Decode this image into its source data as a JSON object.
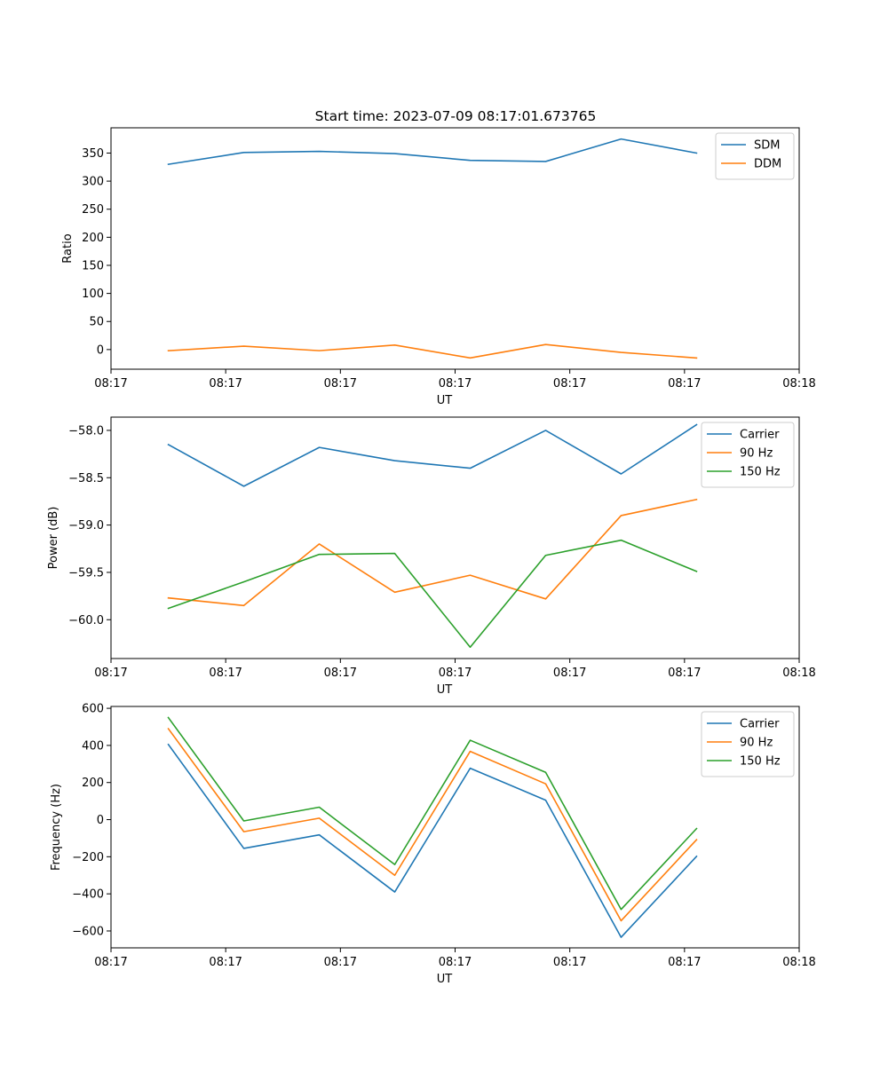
{
  "title": "Start time: 2023-07-09 08:17:01.673765",
  "chart_data": [
    {
      "type": "line",
      "title": "Start time: 2023-07-09 08:17:01.673765",
      "xlabel": "UT",
      "ylabel": "Ratio",
      "x": [
        0,
        1,
        2,
        3,
        4,
        5,
        6,
        7
      ],
      "xlim": [
        -0.76,
        8.36
      ],
      "x_ticks": [
        -0.76,
        0.76,
        2.28,
        3.8,
        5.32,
        6.84,
        8.36
      ],
      "x_tick_labels": [
        "08:17",
        "08:17",
        "08:17",
        "08:17",
        "08:17",
        "08:17",
        "08:18"
      ],
      "ylim": [
        -35,
        395
      ],
      "y_ticks": [
        0,
        50,
        100,
        150,
        200,
        250,
        300,
        350
      ],
      "y_tick_labels": [
        "0",
        "50",
        "100",
        "150",
        "200",
        "250",
        "300",
        "350"
      ],
      "legend_position": "top-right",
      "series": [
        {
          "name": "SDM",
          "color": "#1f77b4",
          "values": [
            330,
            351,
            353,
            349,
            337,
            335,
            375,
            350
          ]
        },
        {
          "name": "DDM",
          "color": "#ff7f0e",
          "values": [
            -2,
            6,
            -2,
            8,
            -15,
            9,
            -5,
            -15
          ]
        }
      ]
    },
    {
      "type": "line",
      "xlabel": "UT",
      "ylabel": "Power (dB)",
      "x": [
        0,
        1,
        2,
        3,
        4,
        5,
        6,
        7
      ],
      "xlim": [
        -0.76,
        8.36
      ],
      "x_ticks": [
        -0.76,
        0.76,
        2.28,
        3.8,
        5.32,
        6.84,
        8.36
      ],
      "x_tick_labels": [
        "08:17",
        "08:17",
        "08:17",
        "08:17",
        "08:17",
        "08:17",
        "08:18"
      ],
      "ylim": [
        -60.41,
        -57.86
      ],
      "y_ticks": [
        -60.0,
        -59.5,
        -59.0,
        -58.5,
        -58.0
      ],
      "y_tick_labels": [
        "−60.0",
        "−59.5",
        "−59.0",
        "−58.5",
        "−58.0"
      ],
      "legend_position": "top-right",
      "series": [
        {
          "name": "Carrier",
          "color": "#1f77b4",
          "values": [
            -58.15,
            -58.59,
            -58.18,
            -58.32,
            -58.4,
            -58.0,
            -58.46,
            -57.94
          ]
        },
        {
          "name": "90 Hz",
          "color": "#ff7f0e",
          "values": [
            -59.77,
            -59.85,
            -59.2,
            -59.71,
            -59.53,
            -59.78,
            -58.9,
            -58.73
          ]
        },
        {
          "name": "150 Hz",
          "color": "#2ca02c",
          "values": [
            -59.88,
            -59.6,
            -59.31,
            -59.3,
            -60.29,
            -59.32,
            -59.16,
            -59.49
          ]
        }
      ]
    },
    {
      "type": "line",
      "xlabel": "UT",
      "ylabel": "Frequency (Hz)",
      "x": [
        0,
        1,
        2,
        3,
        4,
        5,
        6,
        7
      ],
      "xlim": [
        -0.76,
        8.36
      ],
      "x_ticks": [
        -0.76,
        0.76,
        2.28,
        3.8,
        5.32,
        6.84,
        8.36
      ],
      "x_tick_labels": [
        "08:17",
        "08:17",
        "08:17",
        "08:17",
        "08:17",
        "08:17",
        "08:18"
      ],
      "ylim": [
        -691,
        610
      ],
      "y_ticks": [
        -600,
        -400,
        -200,
        0,
        200,
        400,
        600
      ],
      "y_tick_labels": [
        "−600",
        "−400",
        "−200",
        "0",
        "200",
        "400",
        "600"
      ],
      "legend_position": "top-right",
      "series": [
        {
          "name": "Carrier",
          "color": "#1f77b4",
          "values": [
            405,
            -155,
            -82,
            -390,
            277,
            105,
            -634,
            -198
          ]
        },
        {
          "name": "90 Hz",
          "color": "#ff7f0e",
          "values": [
            490,
            -65,
            8,
            -300,
            368,
            193,
            -545,
            -108
          ]
        },
        {
          "name": "150 Hz",
          "color": "#2ca02c",
          "values": [
            550,
            -7,
            67,
            -242,
            428,
            255,
            -484,
            -48
          ]
        }
      ]
    }
  ]
}
